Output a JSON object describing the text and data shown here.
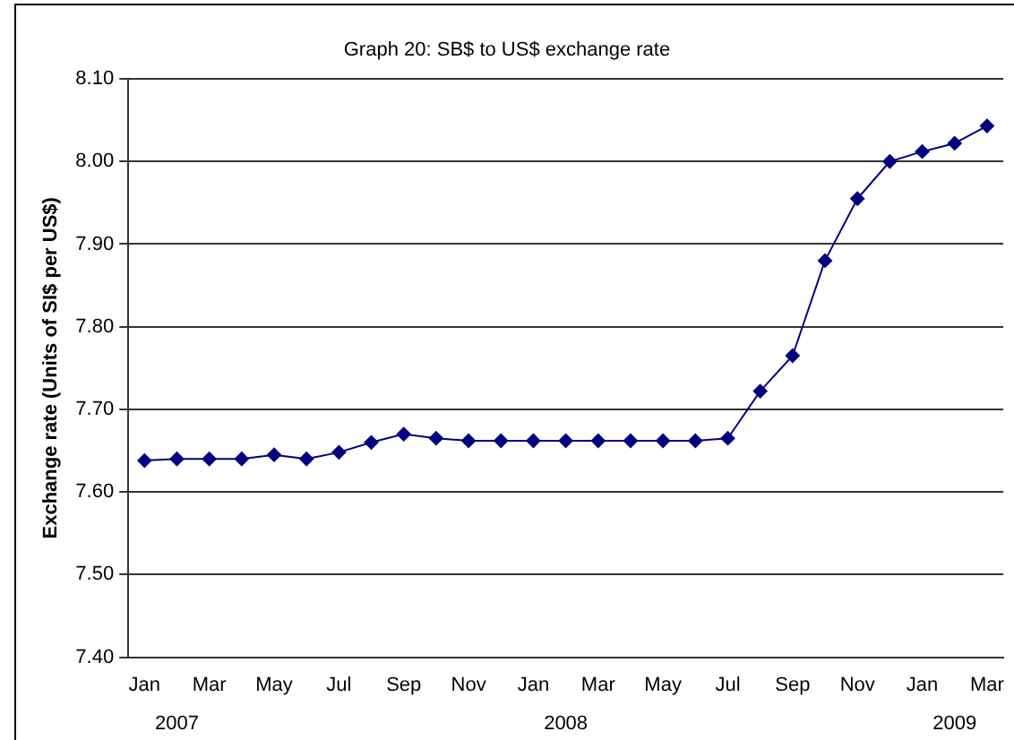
{
  "chart_data": {
    "type": "line",
    "title": "Graph 20: SB$ to US$ exchange rate",
    "ylabel": "Exchange rate (Units of SI$ per US$)",
    "categories": [
      "Jan",
      null,
      "Mar",
      null,
      "May",
      null,
      "Jul",
      null,
      "Sep",
      null,
      "Nov",
      null,
      "Jan",
      null,
      "Mar",
      null,
      "May",
      null,
      "Jul",
      null,
      "Sep",
      null,
      "Nov",
      null,
      "Jan",
      null,
      "Mar"
    ],
    "series": [
      {
        "color": "#000080",
        "values": [
          7.638,
          7.64,
          7.64,
          7.64,
          7.645,
          7.64,
          7.648,
          7.66,
          7.67,
          7.665,
          7.662,
          7.662,
          7.662,
          7.662,
          7.662,
          7.662,
          7.662,
          7.662,
          7.665,
          7.722,
          7.765,
          7.88,
          7.955,
          8.0,
          8.012,
          8.022,
          8.043
        ]
      }
    ],
    "ylim": [
      7.4,
      8.1
    ],
    "yticks": [
      {
        "value": 7.4,
        "label": "7.40"
      },
      {
        "value": 7.5,
        "label": "7.50"
      },
      {
        "value": 7.6,
        "label": "7.60"
      },
      {
        "value": 7.7,
        "label": "7.70"
      },
      {
        "value": 7.8,
        "label": "7.80"
      },
      {
        "value": 7.9,
        "label": "7.90"
      },
      {
        "value": 8.0,
        "label": "8.00"
      },
      {
        "value": 8.1,
        "label": "8.10"
      }
    ],
    "annotations": [
      "2007",
      "2008",
      "2009"
    ],
    "grid": "y",
    "legend": false,
    "marker": "diamond",
    "line_style": "solid"
  }
}
